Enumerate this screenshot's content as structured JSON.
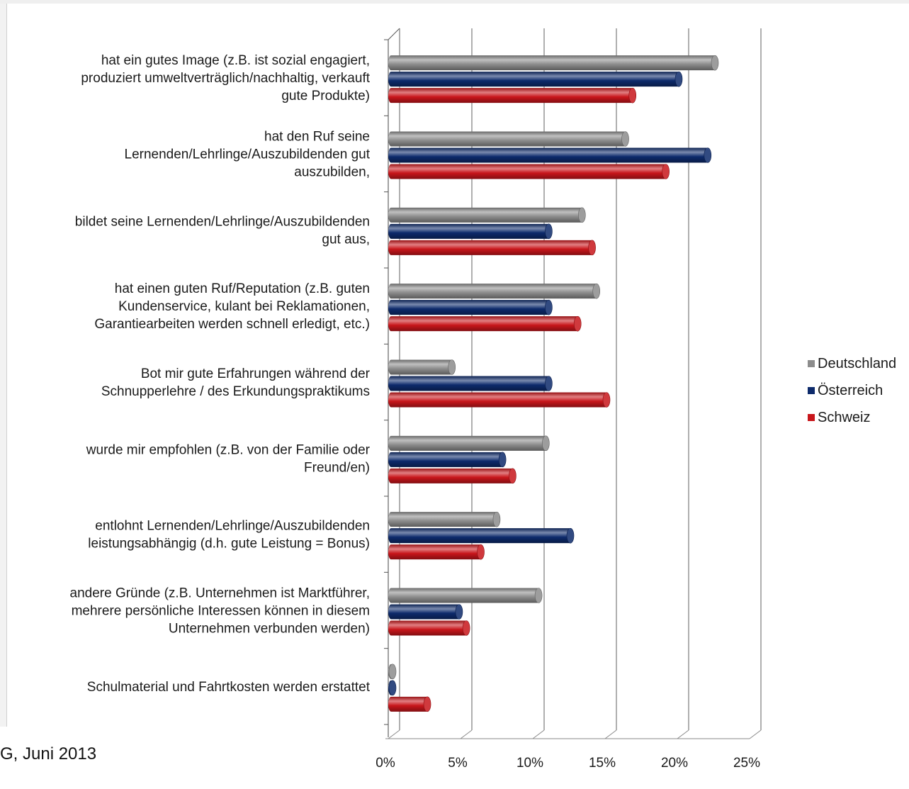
{
  "footer": {
    "source_text": "G, Juni 2013"
  },
  "chart_data": {
    "type": "bar",
    "orientation": "horizontal",
    "style": "3d-cylinder",
    "categories": [
      [
        "hat ein gutes Image (z.B. ist sozial engagiert,",
        "produziert umweltverträglich/nachhaltig, verkauft",
        "gute Produkte)"
      ],
      [
        "hat den Ruf seine",
        "Lernenden/Lehrlinge/Auszubildenden gut",
        "auszubilden,"
      ],
      [
        "bildet seine Lernenden/Lehrlinge/Auszubildenden",
        "gut aus,"
      ],
      [
        "hat einen guten Ruf/Reputation (z.B. guten",
        "Kundenservice, kulant bei Reklamationen,",
        "Garantiearbeiten werden schnell erledigt, etc.)"
      ],
      [
        "Bot mir gute Erfahrungen während der",
        "Schnupperlehre / des Erkundungspraktikums"
      ],
      [
        "wurde mir empfohlen (z.B. von der Familie oder",
        "Freund/en)"
      ],
      [
        "entlohnt Lernenden/Lehrlinge/Auszubildenden",
        "leistungsabhängig (d.h. gute Leistung = Bonus)"
      ],
      [
        "andere Gründe (z.B. Unternehmen ist Marktführer,",
        "mehrere persönliche Interessen können in diesem",
        "Unternehmen verbunden werden)"
      ],
      [
        "Schulmaterial und Fahrtkosten werden erstattet"
      ]
    ],
    "series": [
      {
        "name": "Deutschland",
        "color": "#8c8c8c",
        "values": [
          22.5,
          16.3,
          13.3,
          14.3,
          4.3,
          10.8,
          7.4,
          10.3,
          0.1
        ]
      },
      {
        "name": "Österreich",
        "color": "#0d2a6b",
        "values": [
          20.0,
          22.0,
          11.0,
          11.0,
          11.0,
          7.8,
          12.5,
          4.8,
          0.1
        ]
      },
      {
        "name": "Schweiz",
        "color": "#c8161b",
        "values": [
          16.8,
          19.1,
          14.0,
          13.0,
          15.0,
          8.5,
          6.3,
          5.3,
          2.6
        ]
      }
    ],
    "xticks": [
      "0%",
      "5%",
      "10%",
      "15%",
      "20%",
      "25%"
    ],
    "xlim": [
      0,
      25
    ],
    "grid": true,
    "legend": {
      "position": "right"
    }
  }
}
